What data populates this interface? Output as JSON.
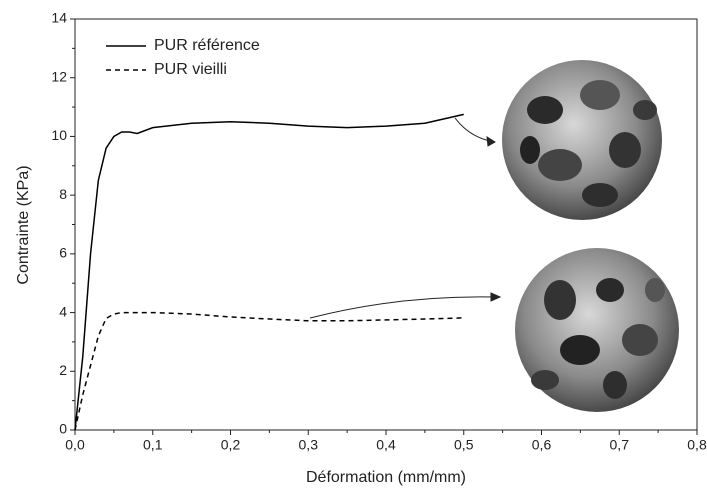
{
  "chart_data": {
    "type": "line",
    "x_label": "Déformation (mm/mm)",
    "y_label": "Contrainte (KPa)",
    "x": [
      0,
      0.01,
      0.02,
      0.03,
      0.04,
      0.05,
      0.06,
      0.07,
      0.08,
      0.1,
      0.15,
      0.2,
      0.25,
      0.3,
      0.35,
      0.4,
      0.45,
      0.5
    ],
    "series": [
      {
        "name": "PUR référence",
        "color": "#000000",
        "dashed": false,
        "values": [
          0,
          2.5,
          6,
          8.5,
          9.6,
          10.0,
          10.15,
          10.15,
          10.1,
          10.3,
          10.45,
          10.5,
          10.45,
          10.35,
          10.3,
          10.35,
          10.45,
          10.75
        ]
      },
      {
        "name": "PUR vieilli",
        "color": "#000000",
        "dashed": true,
        "values": [
          0,
          1.2,
          2.2,
          3.2,
          3.8,
          3.95,
          4.0,
          4.0,
          4.0,
          4.0,
          3.95,
          3.85,
          3.78,
          3.72,
          3.72,
          3.75,
          3.78,
          3.82
        ]
      }
    ],
    "xlim": [
      0,
      0.8
    ],
    "xticks": [
      {
        "value": 0,
        "label": "0,0"
      },
      {
        "value": 0.1,
        "label": "0,1"
      },
      {
        "value": 0.2,
        "label": "0,2"
      },
      {
        "value": 0.3,
        "label": "0,3"
      },
      {
        "value": 0.4,
        "label": "0,4"
      },
      {
        "value": 0.5,
        "label": "0,5"
      },
      {
        "value": 0.6,
        "label": "0,6"
      },
      {
        "value": 0.7,
        "label": "0,7"
      },
      {
        "value": 0.8,
        "label": "0,8"
      }
    ],
    "ylim": [
      0,
      14
    ],
    "yticks": [
      0,
      2,
      4,
      6,
      8,
      10,
      12,
      14
    ],
    "grid": false
  }
}
